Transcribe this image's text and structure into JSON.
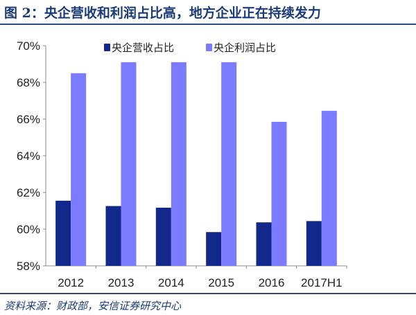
{
  "title": "图 2：央企营收和利润占比高，地方企业正在持续发力",
  "source": "资料来源：财政部，安信证券研究中心",
  "chart_data": {
    "type": "bar",
    "categories": [
      "2012",
      "2013",
      "2014",
      "2015",
      "2016",
      "2017H1"
    ],
    "series": [
      {
        "name": "央企营收占比",
        "color": "#12288a",
        "values": [
          61.55,
          61.26,
          61.17,
          59.84,
          60.37,
          60.44
        ]
      },
      {
        "name": "央企利润占比",
        "color": "#7b7bff",
        "values": [
          68.5,
          69.1,
          69.1,
          69.1,
          65.85,
          66.45
        ]
      }
    ],
    "ylim": [
      58,
      70
    ],
    "yticks": [
      "58%",
      "60%",
      "62%",
      "64%",
      "66%",
      "68%",
      "70%"
    ],
    "yunit": "%",
    "legend": "top",
    "grid": false
  }
}
